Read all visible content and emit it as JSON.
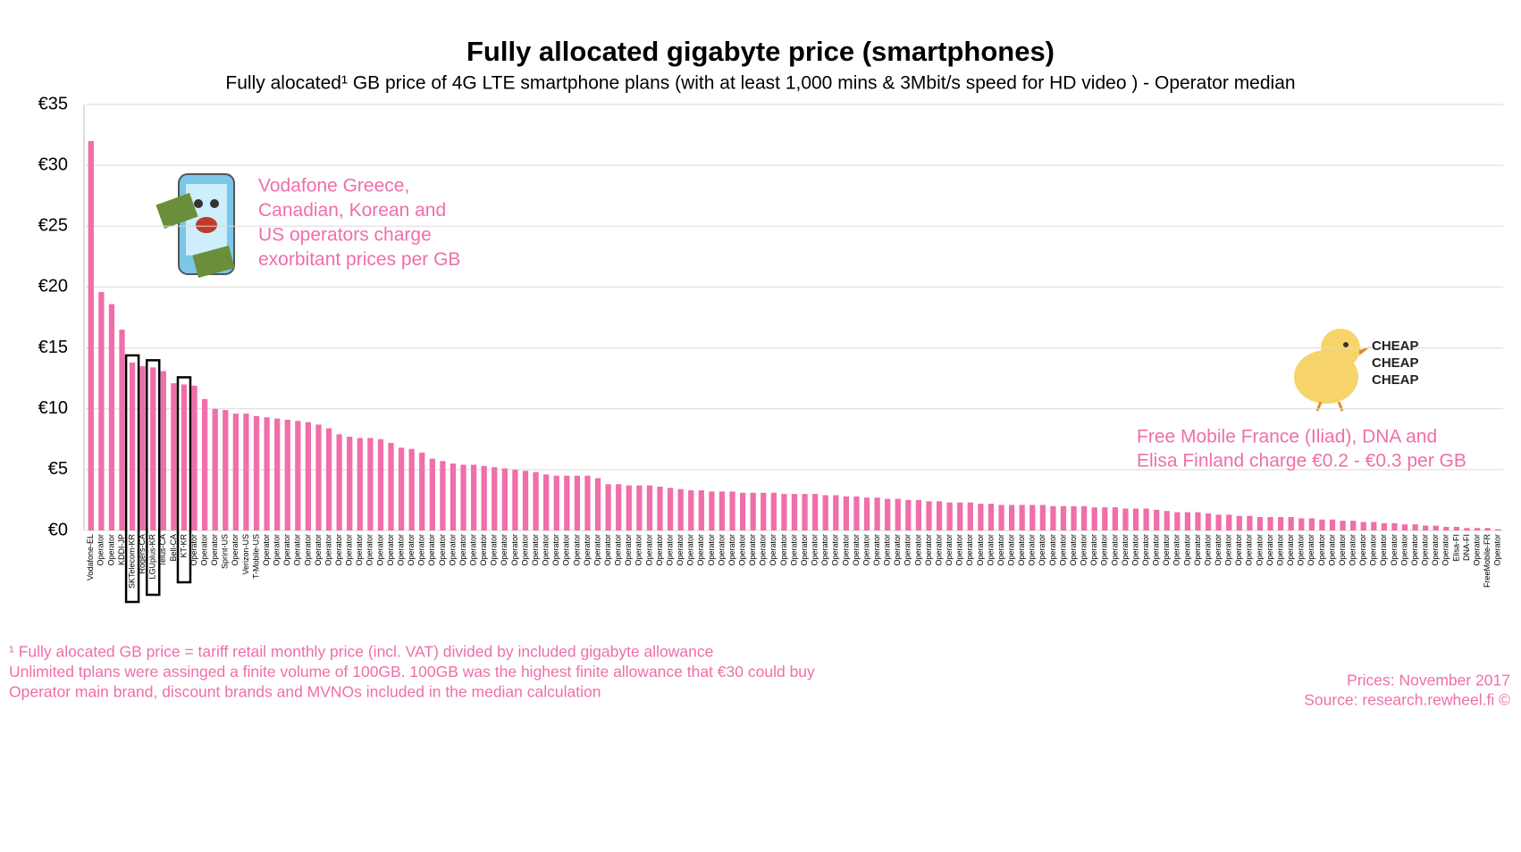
{
  "chart_data": {
    "type": "bar",
    "title": "Fully allocated gigabyte price (smartphones)",
    "subtitle": "Fully alocated¹ GB price of 4G LTE smartphone plans (with at least 1,000 mins & 3Mbit/s speed for HD video ) - Operator median",
    "color": "#f06ea9",
    "grid": true,
    "ylim": [
      0,
      35
    ],
    "yticks": [
      {
        "value": 0,
        "label": "€0"
      },
      {
        "value": 5,
        "label": "€5"
      },
      {
        "value": 10,
        "label": "€10"
      },
      {
        "value": 15,
        "label": "€15"
      },
      {
        "value": 20,
        "label": "€20"
      },
      {
        "value": 25,
        "label": "€25"
      },
      {
        "value": 30,
        "label": "€30"
      },
      {
        "value": 35,
        "label": "€35"
      }
    ],
    "categories": [
      "Vodafone-EL",
      "Operator",
      "Operator",
      "KDDI-JP",
      "SKTelecom-KR",
      "Rogers-CA",
      "LGUplus-KR",
      "Telus-CA",
      "Bell-CA",
      "KT-KR",
      "Operator",
      "Operator",
      "Operator",
      "Sprint-US",
      "Operator",
      "Verizon-US",
      "T-Mobile-US",
      "Operator",
      "Operator",
      "Operator",
      "Operator",
      "Operator",
      "Operator",
      "Operator",
      "Operator",
      "Operator",
      "Operator",
      "Operator",
      "Operator",
      "Operator",
      "Operator",
      "Operator",
      "Operator",
      "Operator",
      "Operator",
      "Operator",
      "Operator",
      "Operator",
      "Operator",
      "Operator",
      "Operator",
      "Operator",
      "Operator",
      "Operator",
      "Operator",
      "Operator",
      "Operator",
      "Operator",
      "Operator",
      "Operator",
      "Operator",
      "Operator",
      "Operator",
      "Operator",
      "Operator",
      "Operator",
      "Operator",
      "Operator",
      "Operator",
      "Operator",
      "Operator",
      "Operator",
      "Operator",
      "Operator",
      "Operator",
      "Operator",
      "Operator",
      "Operator",
      "Operator",
      "Operator",
      "Operator",
      "Operator",
      "Operator",
      "Operator",
      "Operator",
      "Operator",
      "Operator",
      "Operator",
      "Operator",
      "Operator",
      "Operator",
      "Operator",
      "Operator",
      "Operator",
      "Operator",
      "Operator",
      "Operator",
      "Operator",
      "Operator",
      "Operator",
      "Operator",
      "Operator",
      "Operator",
      "Operator",
      "Operator",
      "Operator",
      "Operator",
      "Operator",
      "Operator",
      "Operator",
      "Operator",
      "Operator",
      "Operator",
      "Operator",
      "Operator",
      "Operator",
      "Operator",
      "Operator",
      "Operator",
      "Operator",
      "Operator",
      "Operator",
      "Operator",
      "Operator",
      "Operator",
      "Operator",
      "Operator",
      "Operator",
      "Operator",
      "Operator",
      "Operator",
      "Operator",
      "Operator",
      "Operator",
      "Operator",
      "Operator",
      "Operator",
      "Operator",
      "Operator",
      "Operator",
      "Operator",
      "Operator",
      "Elisa-FI",
      "DNA-FI",
      "Operator",
      "FreeMobile-FR",
      "Operator"
    ],
    "values": [
      32,
      19.6,
      18.6,
      16.5,
      13.8,
      13.5,
      13.4,
      13.1,
      12.1,
      12.0,
      11.9,
      10.8,
      10.0,
      9.9,
      9.6,
      9.6,
      9.4,
      9.3,
      9.2,
      9.1,
      9.0,
      8.9,
      8.7,
      8.4,
      7.9,
      7.7,
      7.6,
      7.6,
      7.5,
      7.2,
      6.8,
      6.7,
      6.4,
      5.9,
      5.7,
      5.5,
      5.4,
      5.4,
      5.3,
      5.2,
      5.1,
      5.0,
      4.9,
      4.8,
      4.6,
      4.5,
      4.5,
      4.5,
      4.5,
      4.3,
      3.8,
      3.8,
      3.7,
      3.7,
      3.7,
      3.6,
      3.5,
      3.4,
      3.3,
      3.3,
      3.2,
      3.2,
      3.2,
      3.1,
      3.1,
      3.1,
      3.1,
      3.0,
      3.0,
      3.0,
      3.0,
      2.9,
      2.9,
      2.8,
      2.8,
      2.7,
      2.7,
      2.6,
      2.6,
      2.5,
      2.5,
      2.4,
      2.4,
      2.3,
      2.3,
      2.3,
      2.2,
      2.2,
      2.1,
      2.1,
      2.1,
      2.1,
      2.1,
      2.0,
      2.0,
      2.0,
      2.0,
      1.9,
      1.9,
      1.9,
      1.8,
      1.8,
      1.8,
      1.7,
      1.6,
      1.5,
      1.5,
      1.5,
      1.4,
      1.3,
      1.3,
      1.2,
      1.2,
      1.1,
      1.1,
      1.1,
      1.1,
      1.0,
      1.0,
      0.9,
      0.9,
      0.8,
      0.8,
      0.7,
      0.7,
      0.6,
      0.6,
      0.5,
      0.5,
      0.4,
      0.4,
      0.3,
      0.3,
      0.2,
      0.2,
      0.2,
      0.1
    ],
    "annotation_expensive": [
      "Vodafone Greece,",
      "Canadian, Korean and",
      "US  operators charge",
      "exorbitant prices per GB"
    ],
    "annotation_cheap": [
      "Free Mobile France (Iliad), DNA and",
      "Elisa Finland charge €0.2 - €0.3 per GB"
    ],
    "chick_text": [
      "CHEAP",
      "CHEAP",
      "CHEAP"
    ],
    "footnotes": [
      "¹ Fully alocated GB price  = tariff retail monthly price  (incl. VAT) divided by included  gigabyte allowance",
      "Unlimited tplans were assinged a finite volume of 100GB. 100GB was the highest finite allowance that €30 could buy",
      "Operator main brand, discount brands and MVNOs included in the median calculation"
    ],
    "source": [
      "Prices: November 2017",
      "Source: research.rewheel.fi  ©"
    ]
  }
}
